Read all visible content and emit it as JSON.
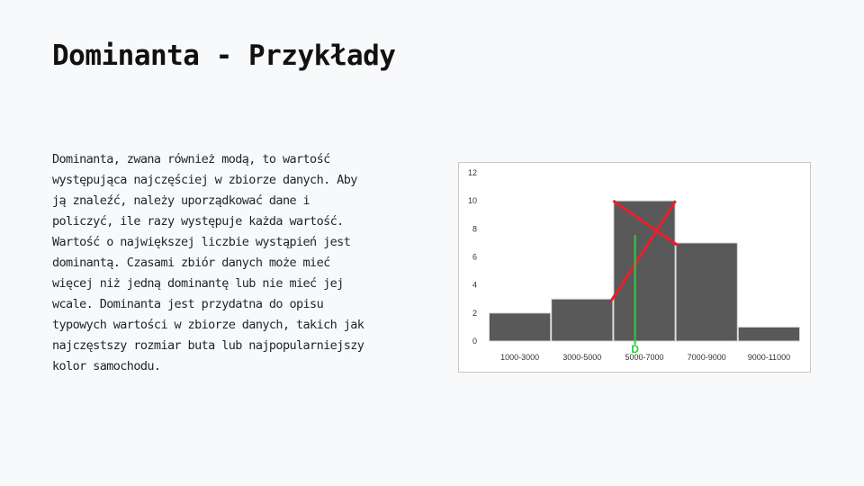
{
  "slide": {
    "title": "Dominanta - Przykłady",
    "paragraph": "Dominanta, zwana również modą, to wartość występująca najczęściej w zbiorze danych. Aby ją znaleźć, należy uporządkować dane i policzyć, ile razy występuje każda wartość. Wartość o największej liczbie wystąpień jest dominantą. Czasami zbiór danych może mieć więcej niż jedną dominantę lub nie mieć jej wcale. Dominanta jest przydatna do opisu typowych wartości w zbiorze danych, takich jak najczęstszy rozmiar buta lub najpopularniejszy kolor samochodu."
  },
  "chart_data": {
    "type": "bar",
    "categories": [
      "1000-3000",
      "3000-5000",
      "5000-7000",
      "7000-9000",
      "9000-11000"
    ],
    "values": [
      2,
      3,
      10,
      7,
      1
    ],
    "ylim": [
      0,
      12
    ],
    "yticks": [
      0,
      2,
      4,
      6,
      8,
      10,
      12
    ],
    "grid": false,
    "legend": "none",
    "bar_color": "#595959",
    "annotation": {
      "label": "D",
      "mode_x": 5700,
      "line_color": "#2ecc40",
      "cross_color": "#e8202a"
    }
  }
}
